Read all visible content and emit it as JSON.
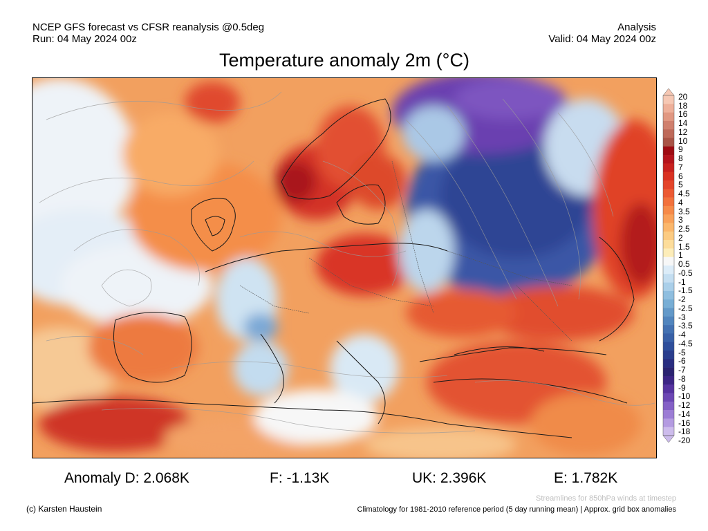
{
  "header": {
    "line1_left": "NCEP GFS forecast vs CFSR reanalysis @0.5deg",
    "line2_left": "Run: 04 May 2024 00z",
    "line1_right": "Analysis",
    "line2_right": "Valid: 04 May 2024 00z"
  },
  "title": "Temperature anomaly 2m (°C)",
  "colorbar": {
    "labels": [
      "20",
      "18",
      "16",
      "14",
      "12",
      "10",
      "9",
      "8",
      "7",
      "6",
      "5",
      "4.5",
      "4",
      "3.5",
      "3",
      "2.5",
      "2",
      "1.5",
      "1",
      "0.5",
      "-0.5",
      "-1",
      "-1.5",
      "-2",
      "-2.5",
      "-3",
      "-3.5",
      "-4",
      "-4.5",
      "-5",
      "-6",
      "-7",
      "-8",
      "-9",
      "-10",
      "-12",
      "-14",
      "-16",
      "-18",
      "-20"
    ],
    "colors": [
      "#f6c8b4",
      "#eeb09a",
      "#e19882",
      "#d0806e",
      "#be6a5a",
      "#a95446",
      "#9e0b12",
      "#b5141c",
      "#c8211f",
      "#d93222",
      "#e4452a",
      "#ec5a33",
      "#f2713c",
      "#f68a49",
      "#f9a15a",
      "#fbb76c",
      "#fccb82",
      "#fddd9b",
      "#fdedb9",
      "#f7f7f7",
      "#dcecf8",
      "#c4def1",
      "#aacfe9",
      "#8fbedf",
      "#78aed5",
      "#6399c9",
      "#5185be",
      "#4371b2",
      "#3860a7",
      "#2e4e9b",
      "#2a3d8d",
      "#292d80",
      "#2b2370",
      "#3c2585",
      "#5633a0",
      "#6c47b4",
      "#8460c6",
      "#9c7dd5",
      "#b49be1",
      "#cdbcec"
    ]
  },
  "stats": {
    "d": "Anomaly D: 2.068K",
    "f": "F: -1.13K",
    "uk": "UK: 2.396K",
    "e": "E: 1.782K"
  },
  "footer": {
    "streamlines_note": "Streamlines for 850hPa winds at timestep",
    "credit": "(c) Karsten Haustein",
    "climatology": "Climatology for 1981-2010 reference period (5 day running mean) | Approx. grid box anomalies"
  }
}
